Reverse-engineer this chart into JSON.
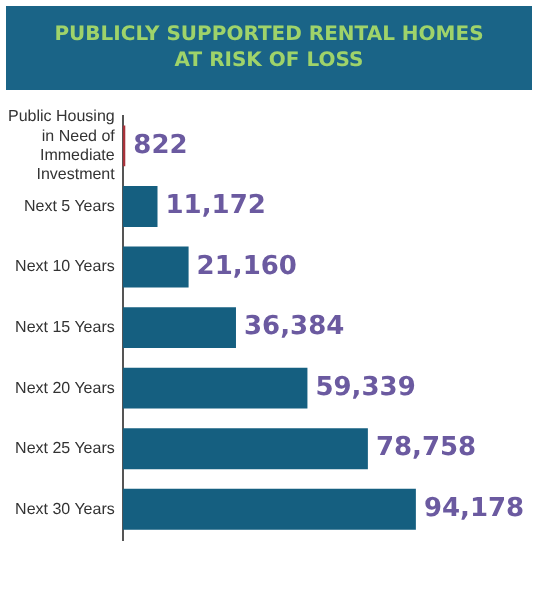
{
  "chart_data": {
    "type": "bar",
    "orientation": "horizontal",
    "title": "PUBLICLY SUPPORTED RENTAL HOMES AT RISK OF LOSS",
    "categories": [
      "Public Housing in Need of Immediate Investment",
      "Next 5 Years",
      "Next 10 Years",
      "Next 15 Years",
      "Next 20 Years",
      "Next 25 Years",
      "Next 30 Years"
    ],
    "values": [
      822,
      11172,
      21160,
      36384,
      59339,
      78758,
      94178
    ],
    "colors": [
      "#a8323a",
      "#155f80",
      "#155f80",
      "#155f80",
      "#155f80",
      "#155f80",
      "#155f80"
    ],
    "value_labels": [
      "822",
      "11,172",
      "21,160",
      "36,384",
      "59,339",
      "78,758",
      "94,178"
    ],
    "grid": false,
    "legend": false,
    "tick_labels": "y"
  }
}
